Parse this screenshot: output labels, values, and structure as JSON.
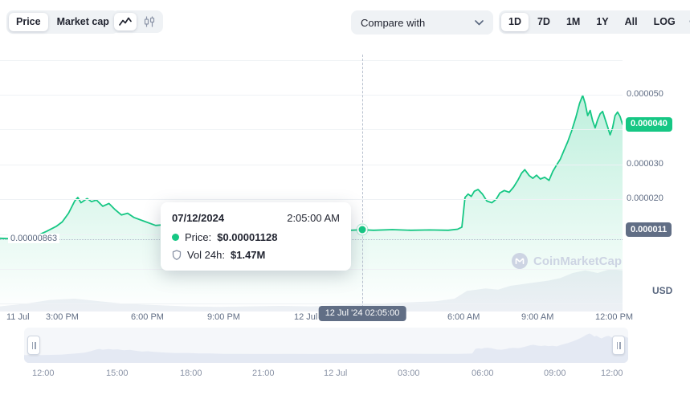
{
  "toolbar": {
    "price_label": "Price",
    "market_cap_label": "Market cap",
    "compare_with_label": "Compare with",
    "ranges": [
      "1D",
      "7D",
      "1M",
      "1Y",
      "All",
      "LOG"
    ],
    "selected_range": "1D",
    "more_label": "···"
  },
  "tooltip": {
    "date": "07/12/2024",
    "time": "2:05:00 AM",
    "price_label": "Price:",
    "price_value": "$0.00001128",
    "vol_label": "Vol 24h:",
    "vol_value": "$1.47M"
  },
  "axis": {
    "y_ticks": [
      "0.000050",
      "0.000030",
      "0.000020"
    ],
    "current_price_badge": "0.000040",
    "hover_price_badge": "0.000011",
    "open_price_label": "0.00000863",
    "x_ticks": [
      "11 Jul",
      "3:00 PM",
      "6:00 PM",
      "9:00 PM",
      "12 Jul",
      "6:00 AM",
      "9:00 AM",
      "12:00 PM"
    ],
    "crosshair_time_badge": "12 Jul '24 02:05:00",
    "currency": "USD"
  },
  "watermark": {
    "text": "CoinMarketCap"
  },
  "brush": {
    "labels": [
      "12:00",
      "15:00",
      "18:00",
      "21:00",
      "12 Jul",
      "03:00",
      "06:00",
      "09:00",
      "12:00"
    ]
  },
  "colors": {
    "accent_green": "#16c784",
    "badge_gray": "#616e85",
    "control_bg": "#eff2f5",
    "text_dark": "#222531",
    "text_gray": "#58667e"
  },
  "chart_data": {
    "type": "line",
    "title": "",
    "unit": "USD",
    "x_range": [
      "11 Jul",
      "12 Jul 1:00 PM"
    ],
    "ylim": [
      -1.22e-05,
      6.15e-05
    ],
    "open_price": 8.63e-06,
    "last_price": 4.15e-05,
    "crosshair": {
      "x": 0.582,
      "price": 1.128e-05,
      "time": "12 Jul '24 02:05:00",
      "vol_24h": "$1.47M"
    },
    "series": [
      {
        "name": "Price",
        "color": "#16c784",
        "points": [
          [
            0.0,
            8.8e-06
          ],
          [
            0.015,
            8.7e-06
          ],
          [
            0.03,
            8.9e-06
          ],
          [
            0.045,
            9.2e-06
          ],
          [
            0.06,
            9.6e-06
          ],
          [
            0.075,
            1.08e-05
          ],
          [
            0.09,
            1.22e-05
          ],
          [
            0.1,
            1.35e-05
          ],
          [
            0.11,
            1.6e-05
          ],
          [
            0.12,
            1.95e-05
          ],
          [
            0.125,
            2.05e-05
          ],
          [
            0.13,
            1.9e-05
          ],
          [
            0.14,
            2.02e-05
          ],
          [
            0.147,
            1.93e-05
          ],
          [
            0.155,
            1.98e-05
          ],
          [
            0.165,
            1.8e-05
          ],
          [
            0.175,
            1.88e-05
          ],
          [
            0.185,
            1.7e-05
          ],
          [
            0.195,
            1.55e-05
          ],
          [
            0.205,
            1.6e-05
          ],
          [
            0.215,
            1.48e-05
          ],
          [
            0.23,
            1.38e-05
          ],
          [
            0.25,
            1.25e-05
          ],
          [
            0.27,
            1.28e-05
          ],
          [
            0.29,
            1.18e-05
          ],
          [
            0.31,
            1.2e-05
          ],
          [
            0.33,
            1.12e-05
          ],
          [
            0.36,
            1.1e-05
          ],
          [
            0.4,
            1.08e-05
          ],
          [
            0.44,
            1.1e-05
          ],
          [
            0.48,
            1.09e-05
          ],
          [
            0.52,
            1.11e-05
          ],
          [
            0.55,
            1.1e-05
          ],
          [
            0.575,
            1.12e-05
          ],
          [
            0.582,
            1.128e-05
          ],
          [
            0.6,
            1.11e-05
          ],
          [
            0.63,
            1.13e-05
          ],
          [
            0.66,
            1.11e-05
          ],
          [
            0.69,
            1.12e-05
          ],
          [
            0.72,
            1.11e-05
          ],
          [
            0.735,
            1.14e-05
          ],
          [
            0.742,
            1.2e-05
          ],
          [
            0.747,
            2.05e-05
          ],
          [
            0.752,
            2.15e-05
          ],
          [
            0.757,
            2.08e-05
          ],
          [
            0.762,
            2.23e-05
          ],
          [
            0.768,
            2.28e-05
          ],
          [
            0.775,
            2.15e-05
          ],
          [
            0.782,
            1.95e-05
          ],
          [
            0.79,
            1.9e-05
          ],
          [
            0.797,
            2e-05
          ],
          [
            0.803,
            2.18e-05
          ],
          [
            0.81,
            2.25e-05
          ],
          [
            0.818,
            2.2e-05
          ],
          [
            0.825,
            2.35e-05
          ],
          [
            0.832,
            2.55e-05
          ],
          [
            0.838,
            2.75e-05
          ],
          [
            0.843,
            2.85e-05
          ],
          [
            0.85,
            2.68e-05
          ],
          [
            0.856,
            2.6e-05
          ],
          [
            0.862,
            2.69e-05
          ],
          [
            0.868,
            2.58e-05
          ],
          [
            0.875,
            2.63e-05
          ],
          [
            0.882,
            2.54e-05
          ],
          [
            0.888,
            2.8e-05
          ],
          [
            0.893,
            2.95e-05
          ],
          [
            0.9,
            3.15e-05
          ],
          [
            0.906,
            3.4e-05
          ],
          [
            0.912,
            3.65e-05
          ],
          [
            0.918,
            3.95e-05
          ],
          [
            0.925,
            4.35e-05
          ],
          [
            0.931,
            4.75e-05
          ],
          [
            0.936,
            4.98e-05
          ],
          [
            0.94,
            4.75e-05
          ],
          [
            0.944,
            4.4e-05
          ],
          [
            0.948,
            4.55e-05
          ],
          [
            0.952,
            4.25e-05
          ],
          [
            0.956,
            4.05e-05
          ],
          [
            0.96,
            4.28e-05
          ],
          [
            0.964,
            4.45e-05
          ],
          [
            0.968,
            4.52e-05
          ],
          [
            0.972,
            4.3e-05
          ],
          [
            0.976,
            4.08e-05
          ],
          [
            0.98,
            3.85e-05
          ],
          [
            0.984,
            4.05e-05
          ],
          [
            0.988,
            4.4e-05
          ],
          [
            0.992,
            4.5e-05
          ],
          [
            0.996,
            4.38e-05
          ],
          [
            1.0,
            4.15e-05
          ]
        ]
      }
    ],
    "volume_profile": [
      [
        0,
        0.02
      ],
      [
        0.04,
        0.03
      ],
      [
        0.08,
        0.045
      ],
      [
        0.12,
        0.05
      ],
      [
        0.16,
        0.04
      ],
      [
        0.2,
        0.03
      ],
      [
        0.25,
        0.025
      ],
      [
        0.3,
        0.02
      ],
      [
        0.35,
        0.018
      ],
      [
        0.4,
        0.02
      ],
      [
        0.45,
        0.022
      ],
      [
        0.5,
        0.02
      ],
      [
        0.55,
        0.025
      ],
      [
        0.6,
        0.03
      ],
      [
        0.65,
        0.035
      ],
      [
        0.7,
        0.04
      ],
      [
        0.73,
        0.05
      ],
      [
        0.75,
        0.08
      ],
      [
        0.78,
        0.09
      ],
      [
        0.8,
        0.085
      ],
      [
        0.82,
        0.1
      ],
      [
        0.85,
        0.11
      ],
      [
        0.88,
        0.12
      ],
      [
        0.9,
        0.13
      ],
      [
        0.92,
        0.15
      ],
      [
        0.94,
        0.16
      ],
      [
        0.96,
        0.15
      ],
      [
        0.98,
        0.165
      ],
      [
        1,
        0.16
      ]
    ]
  }
}
